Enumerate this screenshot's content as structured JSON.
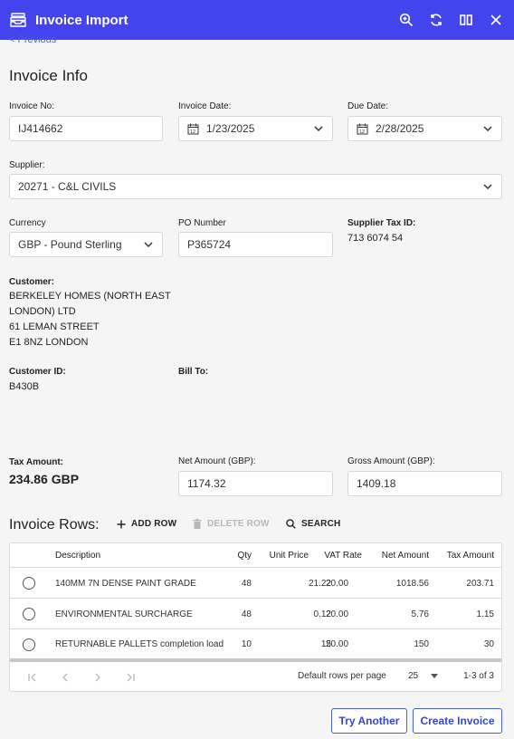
{
  "header": {
    "title": "Invoice Import",
    "icons": [
      "inbox-stack-icon",
      "zoom-icon",
      "refresh-icon",
      "columns-icon",
      "close-icon"
    ]
  },
  "nav": {
    "previous_label": "< Previous"
  },
  "invoice_info": {
    "title": "Invoice Info",
    "invoice_no": {
      "label": "Invoice No:",
      "value": "IJ414662"
    },
    "invoice_date": {
      "label": "Invoice Date:",
      "value": "1/23/2025"
    },
    "due_date": {
      "label": "Due Date:",
      "value": "2/28/2025"
    },
    "supplier": {
      "label": "Supplier:",
      "value": "20271 - C&L CIVILS"
    },
    "currency": {
      "label": "Currency",
      "value": "GBP - Pound Sterling"
    },
    "po_number": {
      "label": "PO Number",
      "value": "P365724"
    },
    "supplier_tax_id": {
      "label": "Supplier Tax ID:",
      "value": "713 6074 54"
    },
    "customer": {
      "label": "Customer:",
      "lines": [
        "BERKELEY HOMES (NORTH EAST",
        "LONDON) LTD",
        "61 LEMAN STREET",
        "E1 8NZ LONDON"
      ]
    },
    "customer_id": {
      "label": "Customer ID:",
      "value": "B430B"
    },
    "bill_to": {
      "label": "Bill To:"
    },
    "tax_amount": {
      "label": "Tax Amount:",
      "value": "234.86 GBP"
    },
    "net_amount": {
      "label": "Net Amount (GBP):",
      "value": "1174.32"
    },
    "gross_amount": {
      "label": "Gross Amount (GBP):",
      "value": "1409.18"
    }
  },
  "invoice_rows": {
    "title": "Invoice Rows:",
    "add_row": "ADD ROW",
    "delete_row": "DELETE ROW",
    "search": "SEARCH",
    "columns": [
      "Description",
      "Qty",
      "Unit Price",
      "VAT Rate",
      "Net Amount",
      "Tax Amount"
    ],
    "rows": [
      [
        "140MM 7N DENSE PAINT GRADE",
        "48",
        "21.22",
        "20.00",
        "1018.56",
        "203.71"
      ],
      [
        "ENVIRONMENTAL SURCHARGE",
        "48",
        "0.12",
        "20.00",
        "5.76",
        "1.15"
      ],
      [
        "RETURNABLE PALLETS completion load",
        "10",
        "15",
        "20.00",
        "150",
        "30"
      ]
    ],
    "footer": {
      "rows_per_page_label": "Default rows per page",
      "rows_per_page": "25",
      "range": "1-3 of 3"
    }
  },
  "actions": {
    "try_another": "Try Another",
    "create_invoice": "Create Invoice"
  },
  "colors": {
    "header_bg": "#4444ee",
    "accent": "#3548c8"
  }
}
